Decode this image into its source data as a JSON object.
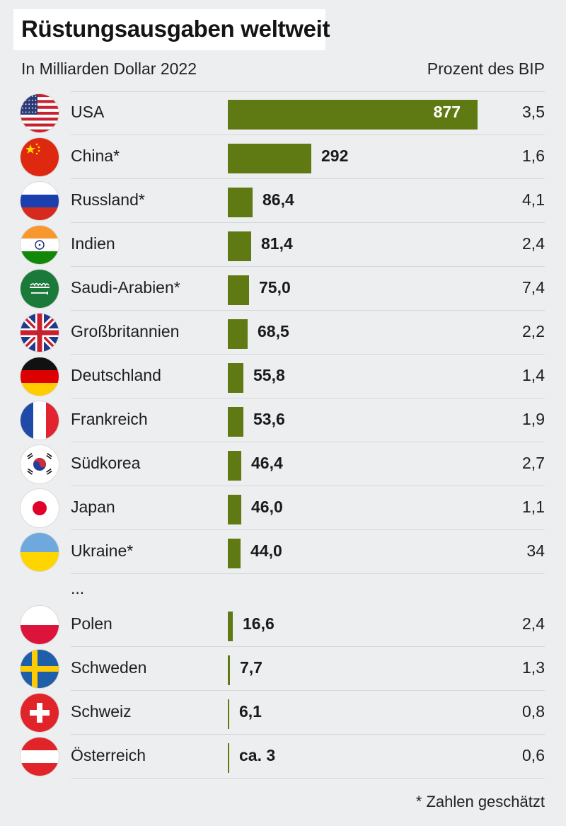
{
  "title": "Rüstungsausgaben weltweit",
  "subtitle": "In Milliarden Dollar 2022",
  "column_header": "Prozent des BIP",
  "ellipsis": "...",
  "footnote": "* Zahlen geschätzt",
  "colors": {
    "bar": "#5f7a12",
    "background": "#edeef0"
  },
  "chart_data": {
    "type": "bar",
    "orientation": "horizontal",
    "title": "Rüstungsausgaben weltweit",
    "subtitle": "In Milliarden Dollar 2022",
    "xlim": [
      0,
      877
    ],
    "categories": [
      "USA",
      "China*",
      "Russland*",
      "Indien",
      "Saudi-Arabien*",
      "Großbritannien",
      "Deutschland",
      "Frankreich",
      "Südkorea",
      "Japan",
      "Ukraine*",
      "Polen",
      "Schweden",
      "Schweiz",
      "Österreich"
    ],
    "series": [
      {
        "values": [
          877,
          292,
          86.4,
          81.4,
          75.0,
          68.5,
          55.8,
          53.6,
          46.4,
          46.0,
          44.0,
          16.6,
          7.7,
          6.1,
          3
        ]
      },
      {
        "name": "Prozent des BIP",
        "values": [
          3.5,
          1.6,
          4.1,
          2.4,
          7.4,
          2.2,
          1.4,
          1.9,
          2.7,
          1.1,
          34,
          2.4,
          1.3,
          0.8,
          0.6
        ]
      }
    ],
    "value_labels": [
      "877",
      "292",
      "86,4",
      "81,4",
      "75,0",
      "68,5",
      "55,8",
      "53,6",
      "46,4",
      "46,0",
      "44,0",
      "16,6",
      "7,7",
      "6,1",
      "ca. 3"
    ],
    "gdp_labels": [
      "3,5",
      "1,6",
      "4,1",
      "2,4",
      "7,4",
      "2,2",
      "1,4",
      "1,9",
      "2,7",
      "1,1",
      "34",
      "2,4",
      "1,3",
      "0,8",
      "0,6"
    ],
    "flags": [
      "usa-flag-icon",
      "china-flag-icon",
      "russia-flag-icon",
      "india-flag-icon",
      "saudi-arabia-flag-icon",
      "uk-flag-icon",
      "germany-flag-icon",
      "france-flag-icon",
      "south-korea-flag-icon",
      "japan-flag-icon",
      "ukraine-flag-icon",
      "poland-flag-icon",
      "sweden-flag-icon",
      "switzerland-flag-icon",
      "austria-flag-icon"
    ]
  }
}
